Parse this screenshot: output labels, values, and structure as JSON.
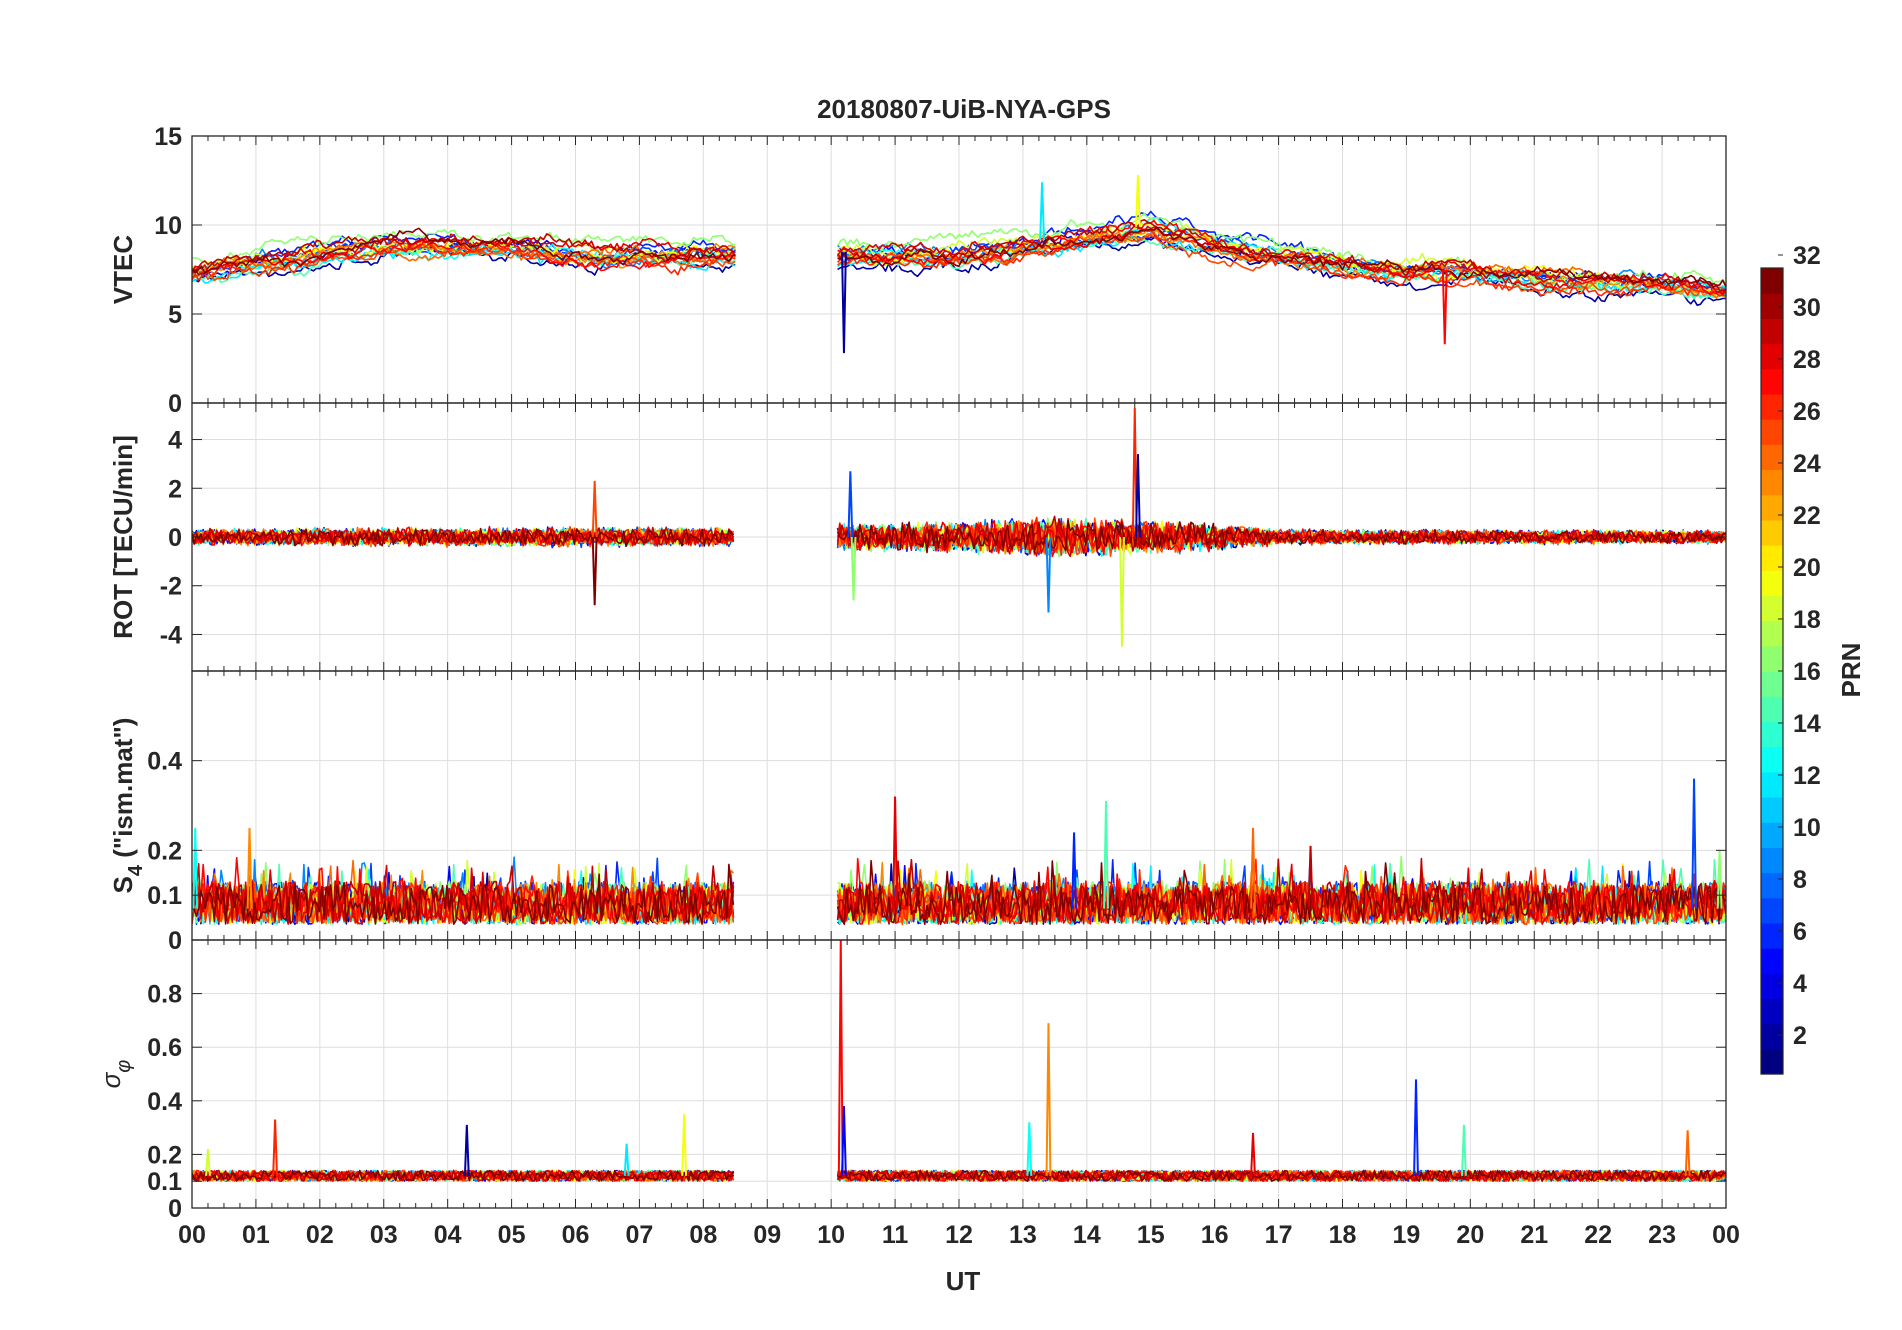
{
  "figure": {
    "title": "20180807-UiB-NYA-GPS",
    "xlabel": "UT",
    "colorbar_label": "PRN"
  },
  "chart_data": [
    {
      "type": "line",
      "panel": "VTEC",
      "ylabel": "VTEC",
      "xlim": [
        0,
        24
      ],
      "ylim": [
        0,
        15
      ],
      "yticks": [
        0,
        5,
        10,
        15
      ],
      "grid": true,
      "data_gap_ut": [
        8.5,
        10.1
      ],
      "level_ut": [
        0,
        1,
        2,
        3,
        4,
        5,
        6,
        7,
        8,
        8.5,
        10.1,
        11,
        12,
        13,
        14,
        15,
        16,
        17,
        18,
        19,
        20,
        21,
        22,
        23,
        24
      ],
      "level": [
        7.5,
        8,
        8.5,
        9,
        9,
        9,
        8.5,
        8.5,
        8.5,
        8.5,
        8.5,
        8.5,
        8.5,
        9,
        9.5,
        10,
        9,
        8.5,
        8,
        7.5,
        7.5,
        7,
        7,
        6.8,
        6.5
      ],
      "amplitude": 0.9,
      "spikes": [
        {
          "ut": 10.2,
          "value": 2.8
        },
        {
          "ut": 13.3,
          "value": 12.4
        },
        {
          "ut": 14.8,
          "value": 12.8
        },
        {
          "ut": 19.6,
          "value": 3.3
        }
      ]
    },
    {
      "type": "line",
      "panel": "ROT",
      "ylabel": "ROT [TECU/min]",
      "xlim": [
        0,
        24
      ],
      "ylim": [
        -5.5,
        5.5
      ],
      "yticks": [
        -4,
        -2,
        0,
        2,
        4
      ],
      "grid": true,
      "data_gap_ut": [
        8.5,
        10.1
      ],
      "level_ut": [
        0,
        8.5,
        10.1,
        24
      ],
      "level": [
        0,
        0,
        0,
        0
      ],
      "noise_ut": [
        0,
        2,
        6,
        8.5,
        10.1,
        12,
        13.5,
        15.5,
        17,
        24
      ],
      "noise": [
        0.35,
        0.4,
        0.45,
        0.4,
        0.6,
        0.7,
        0.9,
        0.7,
        0.35,
        0.3
      ],
      "spikes": [
        {
          "ut": 10.3,
          "value": 2.7
        },
        {
          "ut": 10.35,
          "value": -2.6
        },
        {
          "ut": 6.3,
          "value": 2.3
        },
        {
          "ut": 6.3,
          "value": -2.8
        },
        {
          "ut": 13.4,
          "value": -3.1
        },
        {
          "ut": 14.55,
          "value": -4.5
        },
        {
          "ut": 14.75,
          "value": 5.3
        },
        {
          "ut": 14.8,
          "value": 3.4
        }
      ]
    },
    {
      "type": "line",
      "panel": "S4",
      "ylabel": "S",
      "ylabel_sub": "4",
      "ylabel_tail": " (\"ism.mat\")",
      "xlim": [
        0,
        24
      ],
      "ylim": [
        0,
        0.6
      ],
      "yticks": [
        0,
        0.1,
        0.2,
        0.4
      ],
      "grid": true,
      "data_gap_ut": [
        8.5,
        10.1
      ],
      "level_ut": [
        0,
        8.5,
        10.1,
        24
      ],
      "level": [
        0.07,
        0.07,
        0.07,
        0.07
      ],
      "amplitude": 0.045,
      "spikes": [
        {
          "ut": 0.05,
          "value": 0.25
        },
        {
          "ut": 0.9,
          "value": 0.25
        },
        {
          "ut": 11.0,
          "value": 0.32
        },
        {
          "ut": 13.8,
          "value": 0.24
        },
        {
          "ut": 14.3,
          "value": 0.31
        },
        {
          "ut": 16.6,
          "value": 0.25
        },
        {
          "ut": 17.5,
          "value": 0.21
        },
        {
          "ut": 23.5,
          "value": 0.36
        },
        {
          "ut": 23.9,
          "value": 0.2
        }
      ]
    },
    {
      "type": "line",
      "panel": "sigma_phi",
      "ylabel": "σ",
      "ylabel_sub": "φ",
      "xlim": [
        0,
        24
      ],
      "ylim": [
        0,
        1.0
      ],
      "yticks": [
        0,
        0.1,
        0.2,
        0.4,
        0.6,
        0.8
      ],
      "grid": true,
      "data_gap_ut": [
        8.5,
        10.1
      ],
      "level_ut": [
        0,
        8.5,
        10.1,
        24
      ],
      "level": [
        0.12,
        0.12,
        0.12,
        0.12
      ],
      "amplitude": 0.02,
      "spikes": [
        {
          "ut": 0.25,
          "value": 0.22
        },
        {
          "ut": 1.3,
          "value": 0.33
        },
        {
          "ut": 4.3,
          "value": 0.31
        },
        {
          "ut": 6.8,
          "value": 0.24
        },
        {
          "ut": 7.7,
          "value": 0.35
        },
        {
          "ut": 10.15,
          "value": 1.0
        },
        {
          "ut": 10.2,
          "value": 0.38
        },
        {
          "ut": 13.1,
          "value": 0.32
        },
        {
          "ut": 13.4,
          "value": 0.69
        },
        {
          "ut": 16.6,
          "value": 0.28
        },
        {
          "ut": 19.15,
          "value": 0.48
        },
        {
          "ut": 19.9,
          "value": 0.31
        },
        {
          "ut": 23.4,
          "value": 0.29
        }
      ]
    }
  ],
  "x_axis": {
    "ticks": [
      "00",
      "01",
      "02",
      "03",
      "04",
      "05",
      "06",
      "07",
      "08",
      "09",
      "10",
      "11",
      "12",
      "13",
      "14",
      "15",
      "16",
      "17",
      "18",
      "19",
      "20",
      "21",
      "22",
      "23",
      "00"
    ]
  },
  "colorbar": {
    "range": [
      1,
      32
    ],
    "ticks": [
      2,
      4,
      6,
      8,
      10,
      12,
      14,
      16,
      18,
      20,
      22,
      24,
      26,
      28,
      30,
      32
    ],
    "colormap": "jet"
  },
  "series_prn": [
    2,
    5,
    6,
    7,
    9,
    12,
    13,
    15,
    17,
    19,
    20,
    24,
    25,
    26,
    27,
    28,
    29,
    30,
    32
  ],
  "colors": {
    "axes": "#262626",
    "grid": "#dedede"
  }
}
